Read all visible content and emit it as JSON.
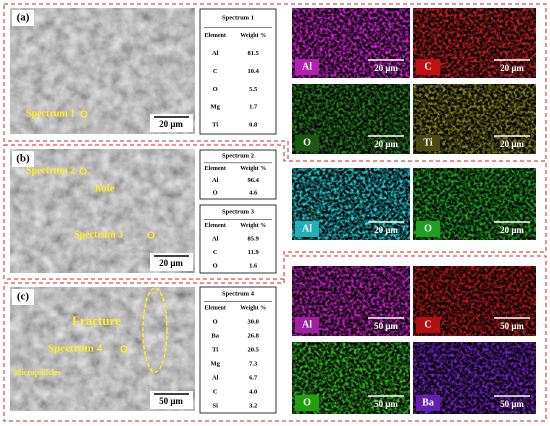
{
  "panels": [
    {
      "label": "(a)",
      "annotations": [
        "Spectrum 1"
      ],
      "scale": "20 μm",
      "tables": [
        {
          "title": "Spectrum 1",
          "header": [
            "Element",
            "Weight %"
          ],
          "rows": [
            [
              "Al",
              "81.5"
            ],
            [
              "C",
              "10.4"
            ],
            [
              "O",
              "5.5"
            ],
            [
              "Mg",
              "1.7"
            ],
            [
              "Ti",
              "0.8"
            ]
          ]
        }
      ],
      "maps": [
        {
          "element": "Al",
          "scale": "20 μm"
        },
        {
          "element": "C",
          "scale": "20 μm"
        },
        {
          "element": "O",
          "scale": "20 μm"
        },
        {
          "element": "Ti",
          "scale": "20 μm"
        }
      ]
    },
    {
      "label": "(b)",
      "annotations": [
        "Spectrum 2",
        "hole",
        "Spectrum 3"
      ],
      "scale": "20 μm",
      "tables": [
        {
          "title": "Spectrum 2",
          "header": [
            "Element",
            "Weight %"
          ],
          "rows": [
            [
              "Al",
              "96.4"
            ],
            [
              "O",
              "4.6"
            ]
          ]
        },
        {
          "title": "Spectrum 3",
          "header": [
            "Element",
            "Weight %"
          ],
          "rows": [
            [
              "Al",
              "85.9"
            ],
            [
              "C",
              "11.9"
            ],
            [
              "O",
              "1.6"
            ]
          ]
        }
      ],
      "maps": [
        {
          "element": "Al",
          "scale": "20 μm"
        },
        {
          "element": "O",
          "scale": "20 μm"
        }
      ]
    },
    {
      "label": "(c)",
      "annotations": [
        "Fracture",
        "Spectrum 4",
        "Micropaticles"
      ],
      "scale": "50 μm",
      "tables": [
        {
          "title": "Spectrum 4",
          "header": [
            "Element",
            "Weight %"
          ],
          "rows": [
            [
              "O",
              "30.0"
            ],
            [
              "Ba",
              "26.8"
            ],
            [
              "Ti",
              "20.5"
            ],
            [
              "Mg",
              "7.3"
            ],
            [
              "Al",
              "6.7"
            ],
            [
              "C",
              "4.0"
            ],
            [
              "Si",
              "3.2"
            ]
          ]
        }
      ],
      "maps": [
        {
          "element": "Al",
          "scale": "50 μm"
        },
        {
          "element": "C",
          "scale": "50 μm"
        },
        {
          "element": "O",
          "scale": "50 μm"
        },
        {
          "element": "Ba",
          "scale": "50 μm"
        }
      ]
    }
  ]
}
